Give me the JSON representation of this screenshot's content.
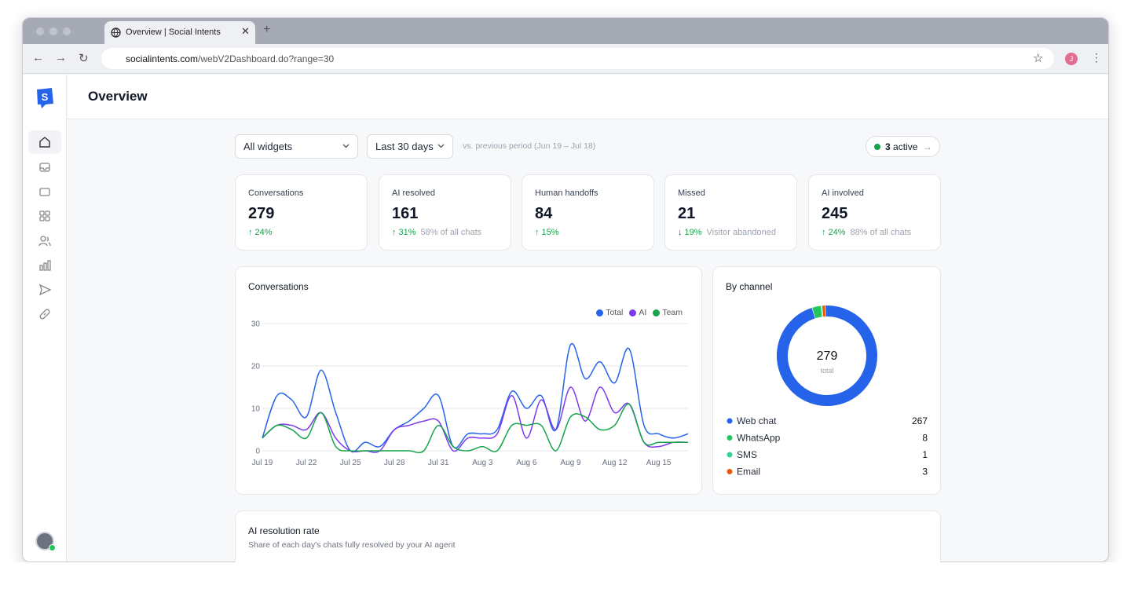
{
  "browser": {
    "tab_title": "Overview | Social Intents",
    "url_host": "socialintents.com",
    "url_path": "/webV2Dashboard.do?range=30",
    "avatar": "J"
  },
  "page": {
    "title": "Overview"
  },
  "filters": {
    "widget": "All widgets",
    "range": "Last 30 days",
    "comparison": "vs. previous period (Jun 19 – Jul 18)",
    "active_count": 3,
    "active_label": "active"
  },
  "kpis": [
    {
      "label": "Conversations",
      "value": 279,
      "change": "24%",
      "direction": "up"
    },
    {
      "label": "AI resolved",
      "value": 161,
      "change": "31%",
      "direction": "up",
      "note": "58% of all chats"
    },
    {
      "label": "Human handoffs",
      "value": 84,
      "change": "15%",
      "direction": "up"
    },
    {
      "label": "Missed",
      "value": 21,
      "change": "19%",
      "direction": "down",
      "note": "Visitor abandoned"
    },
    {
      "label": "AI involved",
      "value": 245,
      "change": "24%",
      "direction": "up",
      "note": "88% of all chats"
    }
  ],
  "chart_data": [
    {
      "type": "line",
      "title": "Conversations",
      "categories": [
        "Jul 19",
        null,
        null,
        "Jul 22",
        null,
        null,
        "Jul 25",
        null,
        null,
        "Jul 28",
        null,
        null,
        "Jul 31",
        null,
        null,
        "Aug 3",
        null,
        null,
        "Aug 6",
        null,
        null,
        "Aug 9",
        null,
        null,
        "Aug 12",
        null,
        null,
        "Aug 15",
        null,
        null
      ],
      "series": [
        {
          "name": "Total",
          "color": "#2563eb",
          "values": [
            3,
            13,
            12,
            8,
            19,
            9,
            0,
            2,
            1,
            5,
            7,
            10,
            13,
            1,
            4,
            4,
            5,
            14,
            10,
            13,
            5,
            25,
            17,
            21,
            16,
            24,
            6,
            4,
            3,
            4
          ]
        },
        {
          "name": "AI",
          "color": "#7c3aed",
          "values": [
            3,
            6,
            6,
            5,
            9,
            3,
            0,
            0,
            0,
            5,
            6,
            7,
            7,
            0,
            3,
            3,
            4,
            13,
            3,
            12,
            5,
            15,
            7,
            15,
            9,
            11,
            2,
            1,
            2,
            2
          ]
        },
        {
          "name": "Team",
          "color": "#16a34a",
          "values": [
            3,
            6,
            5,
            3,
            9,
            1,
            0,
            0,
            0,
            0,
            0,
            0,
            6,
            1,
            0,
            1,
            0,
            6,
            6,
            6,
            0,
            8,
            8,
            5,
            6,
            11,
            2,
            2,
            2,
            2
          ]
        }
      ],
      "ylim": [
        0,
        30
      ],
      "yticks": [
        0,
        10,
        20,
        30
      ],
      "grid": true,
      "legend": "top-right"
    },
    {
      "type": "donut",
      "title": "By channel",
      "total_value": 279,
      "total_label": "total",
      "categories": [
        "Web chat",
        "WhatsApp",
        "SMS",
        "Email"
      ],
      "values": [
        267,
        8,
        1,
        3
      ],
      "colors": [
        "#2563eb",
        "#22c55e",
        "#34d399",
        "#ea580c"
      ]
    }
  ],
  "resolution": {
    "title": "AI resolution rate",
    "subtitle": "Share of each day's chats fully resolved by your AI agent"
  }
}
